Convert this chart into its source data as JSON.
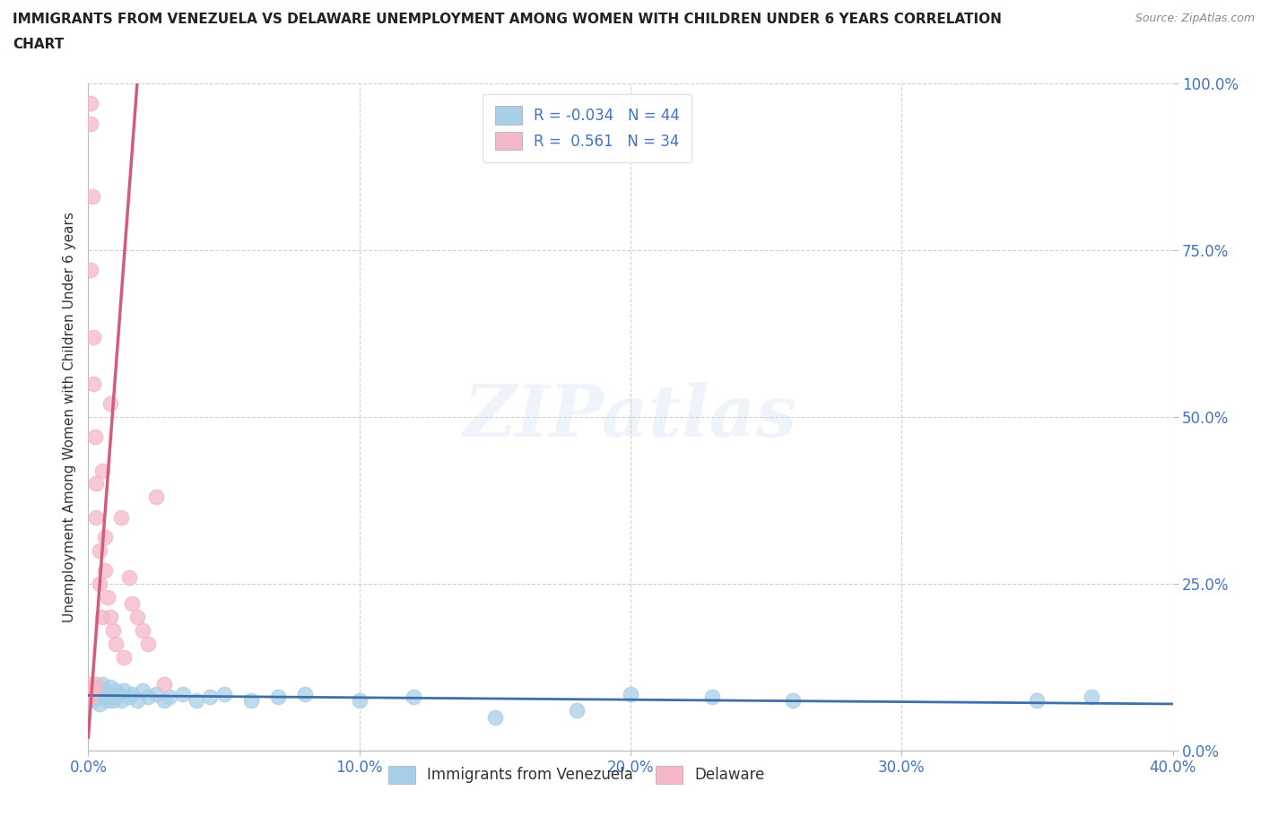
{
  "title_line1": "IMMIGRANTS FROM VENEZUELA VS DELAWARE UNEMPLOYMENT AMONG WOMEN WITH CHILDREN UNDER 6 YEARS CORRELATION",
  "title_line2": "CHART",
  "source": "Source: ZipAtlas.com",
  "ylabel": "Unemployment Among Women with Children Under 6 years",
  "xlim": [
    0.0,
    0.4
  ],
  "ylim": [
    0.0,
    1.0
  ],
  "xticks": [
    0.0,
    0.1,
    0.2,
    0.3,
    0.4
  ],
  "xtick_labels": [
    "0.0%",
    "10.0%",
    "20.0%",
    "30.0%",
    "40.0%"
  ],
  "yticks": [
    0.0,
    0.25,
    0.5,
    0.75,
    1.0
  ],
  "ytick_labels": [
    "0.0%",
    "25.0%",
    "50.0%",
    "75.0%",
    "100.0%"
  ],
  "blue_color": "#a8cfe8",
  "pink_color": "#f4b8c8",
  "blue_line_color": "#3d6faa",
  "pink_line_color": "#d45c7a",
  "R_blue": -0.034,
  "N_blue": 44,
  "R_pink": 0.561,
  "N_pink": 34,
  "watermark": "ZIPatlas",
  "blue_x": [
    0.001,
    0.002,
    0.003,
    0.003,
    0.004,
    0.004,
    0.005,
    0.005,
    0.006,
    0.006,
    0.007,
    0.007,
    0.008,
    0.008,
    0.009,
    0.01,
    0.01,
    0.011,
    0.012,
    0.013,
    0.015,
    0.016,
    0.018,
    0.02,
    0.022,
    0.025,
    0.028,
    0.03,
    0.035,
    0.04,
    0.045,
    0.05,
    0.06,
    0.07,
    0.08,
    0.1,
    0.12,
    0.15,
    0.18,
    0.2,
    0.23,
    0.26,
    0.35,
    0.37
  ],
  "blue_y": [
    0.085,
    0.075,
    0.095,
    0.08,
    0.09,
    0.07,
    0.085,
    0.1,
    0.08,
    0.09,
    0.075,
    0.085,
    0.08,
    0.095,
    0.075,
    0.09,
    0.08,
    0.085,
    0.075,
    0.09,
    0.08,
    0.085,
    0.075,
    0.09,
    0.08,
    0.085,
    0.075,
    0.08,
    0.085,
    0.075,
    0.08,
    0.085,
    0.075,
    0.08,
    0.085,
    0.075,
    0.08,
    0.05,
    0.06,
    0.085,
    0.08,
    0.075,
    0.075,
    0.08
  ],
  "pink_x": [
    0.0003,
    0.0005,
    0.0008,
    0.001,
    0.001,
    0.001,
    0.0015,
    0.002,
    0.002,
    0.002,
    0.0025,
    0.003,
    0.003,
    0.003,
    0.004,
    0.004,
    0.005,
    0.005,
    0.006,
    0.006,
    0.007,
    0.008,
    0.008,
    0.009,
    0.01,
    0.012,
    0.013,
    0.015,
    0.016,
    0.018,
    0.02,
    0.022,
    0.025,
    0.028
  ],
  "pink_y": [
    0.08,
    0.1,
    0.97,
    0.94,
    0.72,
    0.08,
    0.83,
    0.62,
    0.55,
    0.09,
    0.47,
    0.4,
    0.35,
    0.1,
    0.3,
    0.25,
    0.42,
    0.2,
    0.32,
    0.27,
    0.23,
    0.52,
    0.2,
    0.18,
    0.16,
    0.35,
    0.14,
    0.26,
    0.22,
    0.2,
    0.18,
    0.16,
    0.38,
    0.1
  ]
}
